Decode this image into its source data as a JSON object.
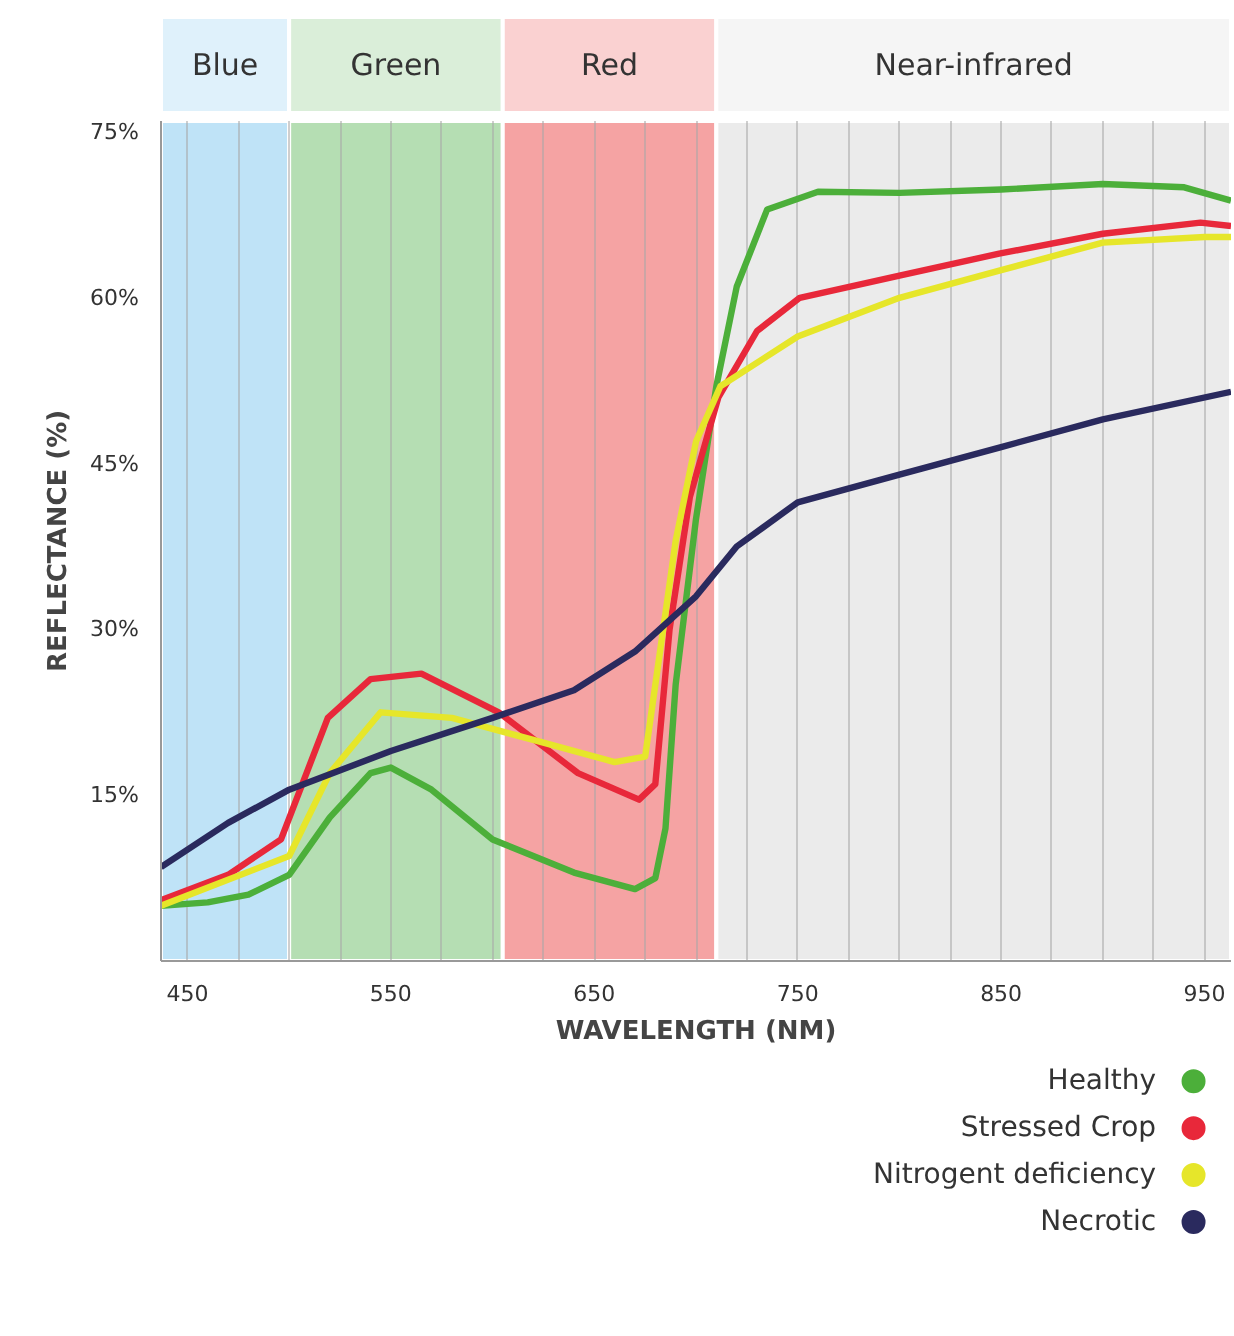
{
  "chart_data": {
    "type": "line",
    "xlabel": "WAVELENGTH (NM)",
    "ylabel": "REFLECTANCE (%)",
    "xlim": [
      437,
      963
    ],
    "ylim": [
      0,
      76
    ],
    "xticks": [
      450,
      {
        "value": 475,
        "label": null
      },
      {
        "value": 500,
        "label": null
      },
      {
        "value": 525,
        "label": null
      },
      550,
      {
        "value": 575,
        "label": null
      },
      {
        "value": 600,
        "label": null
      },
      {
        "value": 625,
        "label": null
      },
      650,
      {
        "value": 675,
        "label": null
      },
      {
        "value": 700,
        "label": null
      },
      {
        "value": 725,
        "label": null
      },
      750,
      {
        "value": 775,
        "label": null
      },
      {
        "value": 800,
        "label": null
      },
      {
        "value": 825,
        "label": null
      },
      850,
      {
        "value": 875,
        "label": null
      },
      {
        "value": 900,
        "label": null
      },
      {
        "value": 925,
        "label": null
      },
      950
    ],
    "yticks": [
      {
        "value": 15,
        "label": "15%"
      },
      {
        "value": 30,
        "label": "30%"
      },
      {
        "value": 45,
        "label": "45%"
      },
      {
        "value": 60,
        "label": "60%"
      },
      {
        "value": 75,
        "label": "75%"
      }
    ],
    "grid": "x",
    "legend": "bottom right",
    "bands": [
      {
        "axis": "x",
        "from": 437,
        "to": 500,
        "label": "Blue",
        "color": "#bfe3f7"
      },
      {
        "axis": "x",
        "from": 500,
        "to": 605,
        "label": "Green",
        "color": "#b5deb3"
      },
      {
        "axis": "x",
        "from": 605,
        "to": 710,
        "label": "Red",
        "color": "#f5a3a3"
      },
      {
        "axis": "x",
        "from": 710,
        "to": 963,
        "label": "Near-infrared",
        "color": "#ebebeb"
      }
    ],
    "series": [
      {
        "name": "Healthy",
        "color": "#4caf3a",
        "x": [
          437,
          460,
          480,
          500,
          520,
          540,
          550,
          570,
          600,
          640,
          670,
          680,
          685,
          690,
          700,
          710,
          720,
          735,
          760,
          800,
          850,
          900,
          940,
          963
        ],
        "values": [
          5,
          5.3,
          6,
          7.8,
          13,
          17,
          17.5,
          15.5,
          11,
          8,
          6.5,
          7.5,
          12,
          25,
          40,
          52,
          61,
          68,
          69.6,
          69.5,
          69.8,
          70.3,
          70,
          68.8
        ]
      },
      {
        "name": "Stressed Crop",
        "color": "#e8283a",
        "x": [
          437,
          470,
          496,
          519,
          540,
          565,
          603,
          642,
          672,
          680,
          687,
          697,
          711,
          730,
          751,
          800,
          849,
          900,
          948,
          963
        ],
        "values": [
          5.5,
          7.8,
          11,
          22,
          25.5,
          26,
          22.5,
          17,
          14.6,
          16,
          30,
          42,
          51,
          57,
          60,
          62,
          64,
          65.8,
          66.8,
          66.5
        ]
      },
      {
        "name": "Nitrogent deficiency",
        "color": "#e6e62a",
        "x": [
          437,
          500,
          520,
          545,
          580,
          620,
          660,
          675,
          680,
          690,
          700,
          712,
          750,
          800,
          850,
          900,
          950,
          963
        ],
        "values": [
          5,
          9.5,
          17,
          22.5,
          22,
          20,
          18,
          18.5,
          25,
          38,
          47,
          52,
          56.5,
          60,
          62.5,
          65,
          65.5,
          65.5
        ]
      },
      {
        "name": "Necrotic",
        "color": "#2a2a5e",
        "x": [
          437,
          470,
          500,
          550,
          600,
          640,
          670,
          700,
          720,
          750,
          800,
          850,
          900,
          963
        ],
        "values": [
          8.5,
          12.5,
          15.5,
          19,
          22,
          24.5,
          28,
          33,
          37.5,
          41.5,
          44,
          46.5,
          49,
          51.5
        ]
      }
    ]
  }
}
